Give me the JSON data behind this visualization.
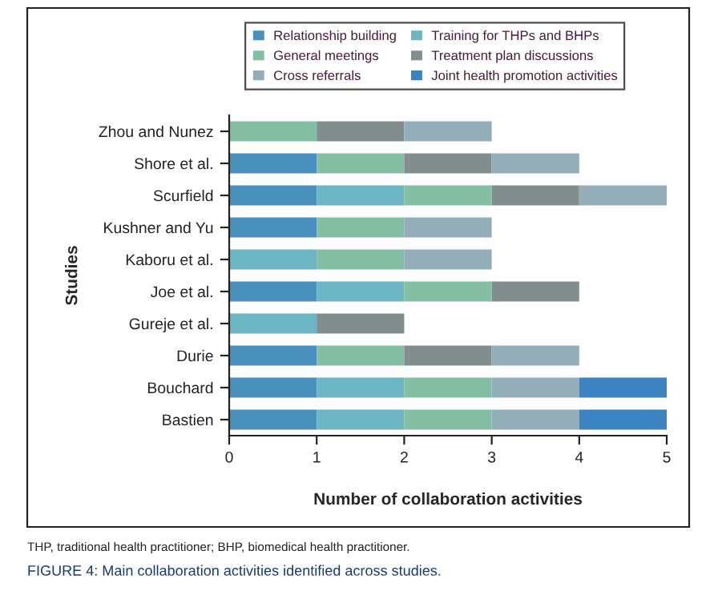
{
  "chart_data": {
    "type": "bar",
    "orientation": "horizontal",
    "stacked": true,
    "categories": [
      "Zhou and Nunez",
      "Shore et al.",
      "Scurfield",
      "Kushner and Yu",
      "Kaboru et al.",
      "Joe et al.",
      "Gureje et al.",
      "Durie",
      "Bouchard",
      "Bastien"
    ],
    "series": [
      {
        "name": "Relationship building",
        "color": "#4a90bd",
        "values": [
          0,
          1,
          1,
          1,
          0,
          1,
          0,
          1,
          1,
          1
        ]
      },
      {
        "name": "Training for THPs and BHPs",
        "color": "#6cb5c2",
        "values": [
          0,
          0,
          1,
          0,
          1,
          1,
          1,
          0,
          1,
          1
        ]
      },
      {
        "name": "General meetings",
        "color": "#84bfa5",
        "values": [
          1,
          1,
          1,
          1,
          1,
          1,
          0,
          1,
          1,
          1
        ]
      },
      {
        "name": "Treatment plan discussions",
        "color": "#828d8d",
        "values": [
          1,
          1,
          1,
          0,
          0,
          1,
          1,
          1,
          0,
          0
        ]
      },
      {
        "name": "Cross referrals",
        "color": "#93aeb9",
        "values": [
          1,
          1,
          1,
          1,
          1,
          0,
          0,
          1,
          1,
          1
        ]
      },
      {
        "name": "Joint health promotion activities",
        "color": "#3a82c0",
        "values": [
          0,
          0,
          0,
          0,
          0,
          0,
          0,
          0,
          1,
          1
        ]
      }
    ],
    "xlabel": "Number of collaboration activities",
    "ylabel": "Studies",
    "xlim": [
      0,
      5
    ],
    "xticks": [
      0,
      1,
      2,
      3,
      4,
      5
    ],
    "grid": false,
    "legend": "top",
    "annotations": [
      "THP, traditional health practitioner; BHP, biomedical health practitioner.",
      "FIGURE 4: Main collaboration activities identified across studies."
    ]
  }
}
